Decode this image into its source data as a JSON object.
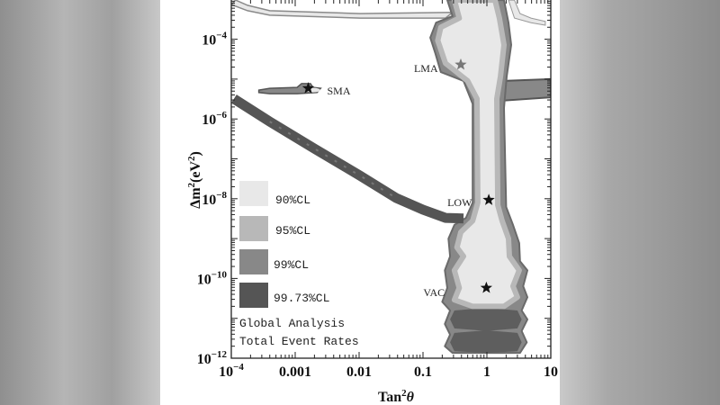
{
  "chart_data": {
    "type": "contour",
    "xlabel": {
      "base": "Tan",
      "sup": "2",
      "tail": "θ"
    },
    "ylabel": {
      "base": "Δm",
      "sup": "2",
      "mid": "(eV",
      "sup2": "2",
      "tail": ")"
    },
    "x_scale": "log",
    "y_scale": "log",
    "xlim": [
      0.0001,
      10
    ],
    "ylim": [
      1e-12,
      0.00096
    ],
    "grid": false,
    "x_ticks": [
      {
        "value": 0.0001,
        "label": "10",
        "sup": "−4"
      },
      {
        "value": 0.001,
        "label": "0.001",
        "sup": ""
      },
      {
        "value": 0.01,
        "label": "0.01",
        "sup": ""
      },
      {
        "value": 0.1,
        "label": "0.1",
        "sup": ""
      },
      {
        "value": 1,
        "label": "1",
        "sup": ""
      },
      {
        "value": 10,
        "label": "10",
        "sup": ""
      }
    ],
    "y_ticks": [
      {
        "value": 0.0001,
        "label": "10",
        "sup": "−4"
      },
      {
        "value": 1e-06,
        "label": "10",
        "sup": "−6"
      },
      {
        "value": 1e-08,
        "label": "10",
        "sup": "−8"
      },
      {
        "value": 1e-10,
        "label": "10",
        "sup": "−10"
      },
      {
        "value": 1e-12,
        "label": "10",
        "sup": "−12"
      }
    ],
    "levels": {
      "cl90": {
        "label": "90%CL",
        "color": "#e8e8e8"
      },
      "cl95": {
        "label": "95%CL",
        "color": "#b8b8b8"
      },
      "cl99": {
        "label": "99%CL",
        "color": "#888888"
      },
      "cl9973": {
        "label": "99.73%CL",
        "color": "#555555"
      }
    },
    "legend_placement": "left",
    "regions": {
      "main_outer_99": [
        [
          0.24,
          0.00096
        ],
        [
          0.29,
          0.00038
        ],
        [
          0.16,
          0.00026
        ],
        [
          0.13,
          0.00011
        ],
        [
          0.157,
          4.3e-05
        ],
        [
          0.19,
          1.5e-05
        ],
        [
          0.43,
          9e-06
        ],
        [
          0.6,
          2.4e-06
        ],
        [
          0.6,
          8e-09
        ],
        [
          0.47,
          3.3e-09
        ],
        [
          0.31,
          2.2e-09
        ],
        [
          0.25,
          1e-09
        ],
        [
          0.265,
          3.6e-10
        ],
        [
          0.22,
          1.6e-10
        ],
        [
          0.24,
          5.8e-11
        ],
        [
          0.2,
          2.6e-11
        ],
        [
          0.265,
          1.57e-11
        ],
        [
          0.22,
          7.2e-12
        ],
        [
          0.265,
          3.9e-12
        ],
        [
          0.22,
          2e-12
        ],
        [
          0.29,
          1.36e-12
        ],
        [
          3.3,
          1.36e-12
        ],
        [
          4.2,
          2.5e-12
        ],
        [
          3.5,
          4.8e-12
        ],
        [
          4.3,
          9.4e-12
        ],
        [
          3.5,
          1.57e-11
        ],
        [
          4.3,
          3.4e-11
        ],
        [
          3.7,
          6.4e-11
        ],
        [
          4.3,
          1.6e-10
        ],
        [
          3.3,
          2.7e-10
        ],
        [
          3.2,
          7.7e-10
        ],
        [
          2.56,
          2.2e-09
        ],
        [
          2.0,
          6.2e-09
        ],
        [
          1.85,
          1.9e-06
        ],
        [
          2.04,
          1.16e-05
        ],
        [
          2.4,
          7.2e-05
        ],
        [
          2.18,
          0.00026
        ],
        [
          1.85,
          0.00096
        ]
      ],
      "main_inner_90": [
        [
          0.31,
          0.00096
        ],
        [
          0.37,
          0.00034
        ],
        [
          0.19,
          0.0002
        ],
        [
          0.17,
          9.3e-05
        ],
        [
          0.225,
          2.5e-05
        ],
        [
          0.5,
          9e-06
        ],
        [
          0.7,
          3.2e-06
        ],
        [
          0.72,
          8e-09
        ],
        [
          0.6,
          2.8e-09
        ],
        [
          0.39,
          1.45e-09
        ],
        [
          0.34,
          6e-10
        ],
        [
          0.43,
          3.6e-10
        ],
        [
          0.31,
          1.6e-10
        ],
        [
          0.37,
          5.8e-11
        ],
        [
          0.31,
          2.9e-11
        ],
        [
          0.6,
          2e-11
        ],
        [
          1.85,
          2e-11
        ],
        [
          3.0,
          3.4e-11
        ],
        [
          2.56,
          6.4e-11
        ],
        [
          3.2,
          1.6e-10
        ],
        [
          2.25,
          3.6e-10
        ],
        [
          2.18,
          1e-09
        ],
        [
          1.73,
          2.8e-09
        ],
        [
          1.48,
          6.9e-09
        ],
        [
          1.43,
          3.2e-06
        ],
        [
          1.63,
          1.16e-05
        ],
        [
          1.85,
          7.2e-05
        ],
        [
          1.57,
          0.00034
        ],
        [
          1.34,
          0.00096
        ]
      ],
      "lower_lobe_1_9973": [
        [
          0.31,
          1.57e-11
        ],
        [
          0.98,
          1.84e-11
        ],
        [
          3.0,
          1.57e-11
        ],
        [
          3.5,
          9.4e-12
        ],
        [
          3.0,
          5.6e-12
        ],
        [
          0.98,
          4.8e-12
        ],
        [
          0.31,
          5.6e-12
        ],
        [
          0.265,
          9.4e-12
        ]
      ],
      "lower_lobe_2_9973": [
        [
          0.31,
          4.3e-12
        ],
        [
          0.98,
          5e-12
        ],
        [
          3.0,
          4.3e-12
        ],
        [
          3.5,
          2.5e-12
        ],
        [
          3.0,
          1.5e-12
        ],
        [
          0.98,
          1.36e-12
        ],
        [
          0.31,
          1.5e-12
        ],
        [
          0.265,
          2.5e-12
        ]
      ],
      "diagonal_band_9973": [
        [
          0.00011,
          3.2e-06
        ],
        [
          0.0004,
          8.6e-07
        ],
        [
          0.002,
          1.8e-07
        ],
        [
          0.0103,
          3.8e-08
        ],
        [
          0.038,
          1.04e-08
        ],
        [
          0.1,
          5.3e-09
        ],
        [
          0.225,
          3.3e-09
        ],
        [
          0.43,
          3.2e-09
        ]
      ],
      "sma_island_99": [
        [
          0.00027,
          5.3e-06
        ],
        [
          0.0004,
          5.9e-06
        ],
        [
          0.00107,
          6.2e-06
        ],
        [
          0.00126,
          7.7e-06
        ],
        [
          0.00173,
          7.7e-06
        ],
        [
          0.0019,
          6.2e-06
        ],
        [
          0.0025,
          5.9e-06
        ],
        [
          0.0022,
          4.6e-06
        ],
        [
          0.00107,
          4.3e-06
        ],
        [
          0.0004,
          4.3e-06
        ],
        [
          0.00027,
          4.6e-06
        ]
      ],
      "right_arm_99": [
        [
          1.85,
          9e-06
        ],
        [
          10,
          1e-05
        ],
        [
          10,
          3.5e-06
        ],
        [
          1.85,
          2.9e-06
        ]
      ],
      "top_band_90": [
        [
          0.0001,
          0.00074
        ],
        [
          0.00018,
          0.00052
        ],
        [
          0.0004,
          0.0004
        ],
        [
          0.0103,
          0.00034
        ],
        [
          0.225,
          0.00034
        ],
        [
          0.29,
          0.00047
        ],
        [
          0.0103,
          0.00044
        ],
        [
          0.0004,
          0.00052
        ],
        [
          0.00018,
          0.00071
        ],
        [
          0.000117,
          0.00096
        ]
      ],
      "top_right_arc_90": [
        [
          2.18,
          0.00096
        ],
        [
          2.7,
          0.00034
        ],
        [
          4.9,
          0.00026
        ],
        [
          8.2,
          0.000225
        ],
        [
          8.2,
          0.00028
        ],
        [
          4.9,
          0.00034
        ],
        [
          3.3,
          0.00044
        ],
        [
          2.7,
          0.00096
        ]
      ]
    },
    "best_fit_points": [
      {
        "label": "LMA",
        "tan2": 0.39,
        "dm2": 2.3e-05,
        "star_color": "#777777"
      },
      {
        "label": "SMA",
        "tan2": 0.0016,
        "dm2": 5.9e-06,
        "star_color": "#111111"
      },
      {
        "label": "LOW",
        "tan2": 1.07,
        "dm2": 9.3e-09,
        "star_color": "#111111"
      },
      {
        "label": "VAC",
        "tan2": 0.98,
        "dm2": 5.8e-11,
        "star_color": "#111111"
      }
    ],
    "annotation": [
      "Global Analysis",
      "Total Event Rates"
    ]
  }
}
